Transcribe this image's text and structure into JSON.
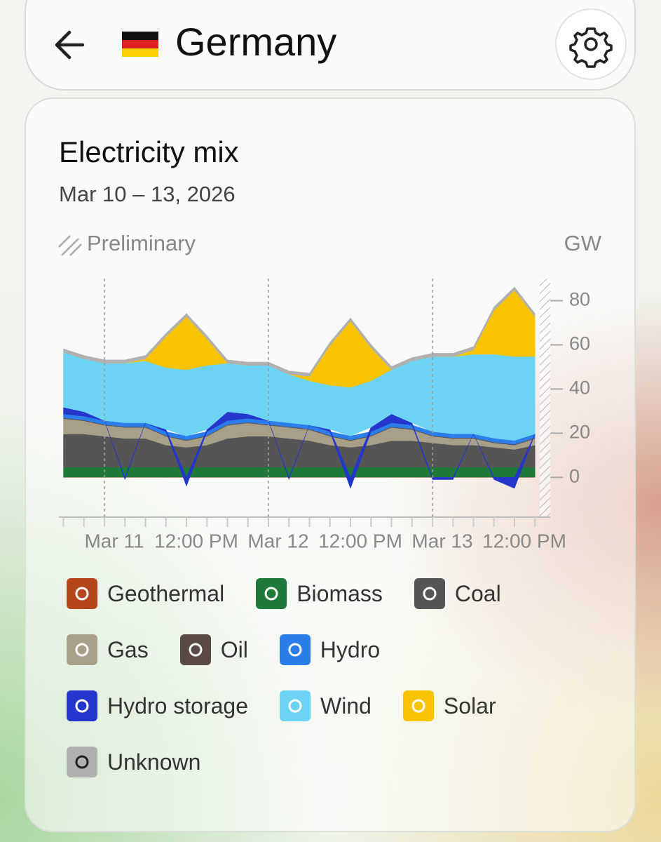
{
  "header": {
    "title": "Germany"
  },
  "card": {
    "title": "Electricity mix",
    "subtitle": "Mar 10 – 13, 2026",
    "status": "Preliminary"
  },
  "chart_data": {
    "type": "stacked_area",
    "y_label": "GW",
    "categories": [
      null,
      null,
      "Mar 11",
      null,
      null,
      null,
      "12:00 PM",
      null,
      null,
      null,
      "Mar 12",
      null,
      null,
      null,
      "12:00 PM",
      null,
      null,
      null,
      "Mar 13",
      null,
      null,
      null,
      "12:00 PM",
      null
    ],
    "ylim": [
      -18,
      90
    ],
    "yticks": [
      0,
      20,
      40,
      60,
      80
    ],
    "series": [
      {
        "name": "Geothermal",
        "color": "#b5451b",
        "values": [
          0.1,
          0.1,
          0.1,
          0.1,
          0.1,
          0.1,
          0.1,
          0.1,
          0.1,
          0.1,
          0.1,
          0.1,
          0.1,
          0.1,
          0.1,
          0.1,
          0.1,
          0.1,
          0.1,
          0.1,
          0.1,
          0.1,
          0.1,
          0.1
        ]
      },
      {
        "name": "Biomass",
        "color": "#1f7a3a",
        "values": [
          4.5,
          4.5,
          4.5,
          4.5,
          4.5,
          4.5,
          4.5,
          4.5,
          4.5,
          4.5,
          4.5,
          4.5,
          4.5,
          4.5,
          4.5,
          4.5,
          4.5,
          4.5,
          4.5,
          4.5,
          4.5,
          4.5,
          4.5,
          4.5
        ]
      },
      {
        "name": "Coal",
        "color": "#555555",
        "values": [
          15,
          15,
          14,
          13,
          13,
          10,
          9,
          10,
          13,
          14,
          14,
          13,
          12,
          10,
          9,
          10,
          12,
          12,
          11,
          10,
          10,
          9,
          8,
          10
        ]
      },
      {
        "name": "Gas",
        "color": "#a89f88",
        "values": [
          7,
          6,
          5,
          5,
          5,
          4,
          3,
          4,
          6,
          6,
          5,
          5,
          5,
          4,
          3,
          4,
          6,
          5,
          3,
          3,
          3,
          2,
          2,
          3
        ]
      },
      {
        "name": "Oil",
        "color": "#5a4a45",
        "values": [
          0.3,
          0.3,
          0.3,
          0.3,
          0.3,
          0.3,
          0.3,
          0.3,
          0.3,
          0.3,
          0.3,
          0.3,
          0.3,
          0.3,
          0.3,
          0.3,
          0.3,
          0.3,
          0.3,
          0.3,
          0.3,
          0.3,
          0.3,
          0.3
        ]
      },
      {
        "name": "Hydro",
        "color": "#2b7de9",
        "values": [
          1.8,
          1.8,
          1.8,
          1.8,
          1.8,
          1.8,
          1.8,
          1.8,
          1.8,
          1.8,
          1.8,
          1.8,
          1.8,
          1.8,
          1.8,
          1.8,
          1.8,
          1.8,
          1.8,
          1.8,
          1.8,
          1.8,
          1.8,
          1.8
        ]
      },
      {
        "name": "Hydro storage",
        "color": "#2436cc",
        "values": [
          3,
          2,
          0,
          -1,
          0,
          1,
          -4,
          1,
          4,
          2,
          0,
          -1,
          0,
          1,
          -5,
          2,
          4,
          1,
          -1,
          -1,
          0,
          -1,
          -5,
          0
        ]
      },
      {
        "name": "Wind",
        "color": "#6dd3f5",
        "values": [
          25,
          24,
          26,
          27,
          28,
          28,
          30,
          29,
          22,
          22,
          25,
          22,
          20,
          20,
          22,
          21,
          20,
          28,
          34,
          35,
          36,
          38,
          38,
          35
        ]
      },
      {
        "name": "Solar",
        "color": "#f8c400",
        "values": [
          0,
          0,
          0,
          0,
          1,
          14,
          24,
          12,
          0,
          0,
          0,
          0,
          2,
          18,
          30,
          15,
          0,
          0,
          0,
          0,
          2,
          20,
          30,
          18
        ]
      },
      {
        "name": "Unknown",
        "color": "#b0b0b0",
        "values": [
          1.5,
          1.5,
          1.5,
          1.5,
          1.5,
          1.5,
          1.5,
          1.5,
          1.5,
          1.5,
          1.5,
          1.5,
          1.5,
          1.5,
          1.5,
          1.5,
          1.5,
          1.5,
          1.5,
          1.5,
          1.5,
          1.5,
          1.5,
          1.5
        ]
      }
    ]
  }
}
